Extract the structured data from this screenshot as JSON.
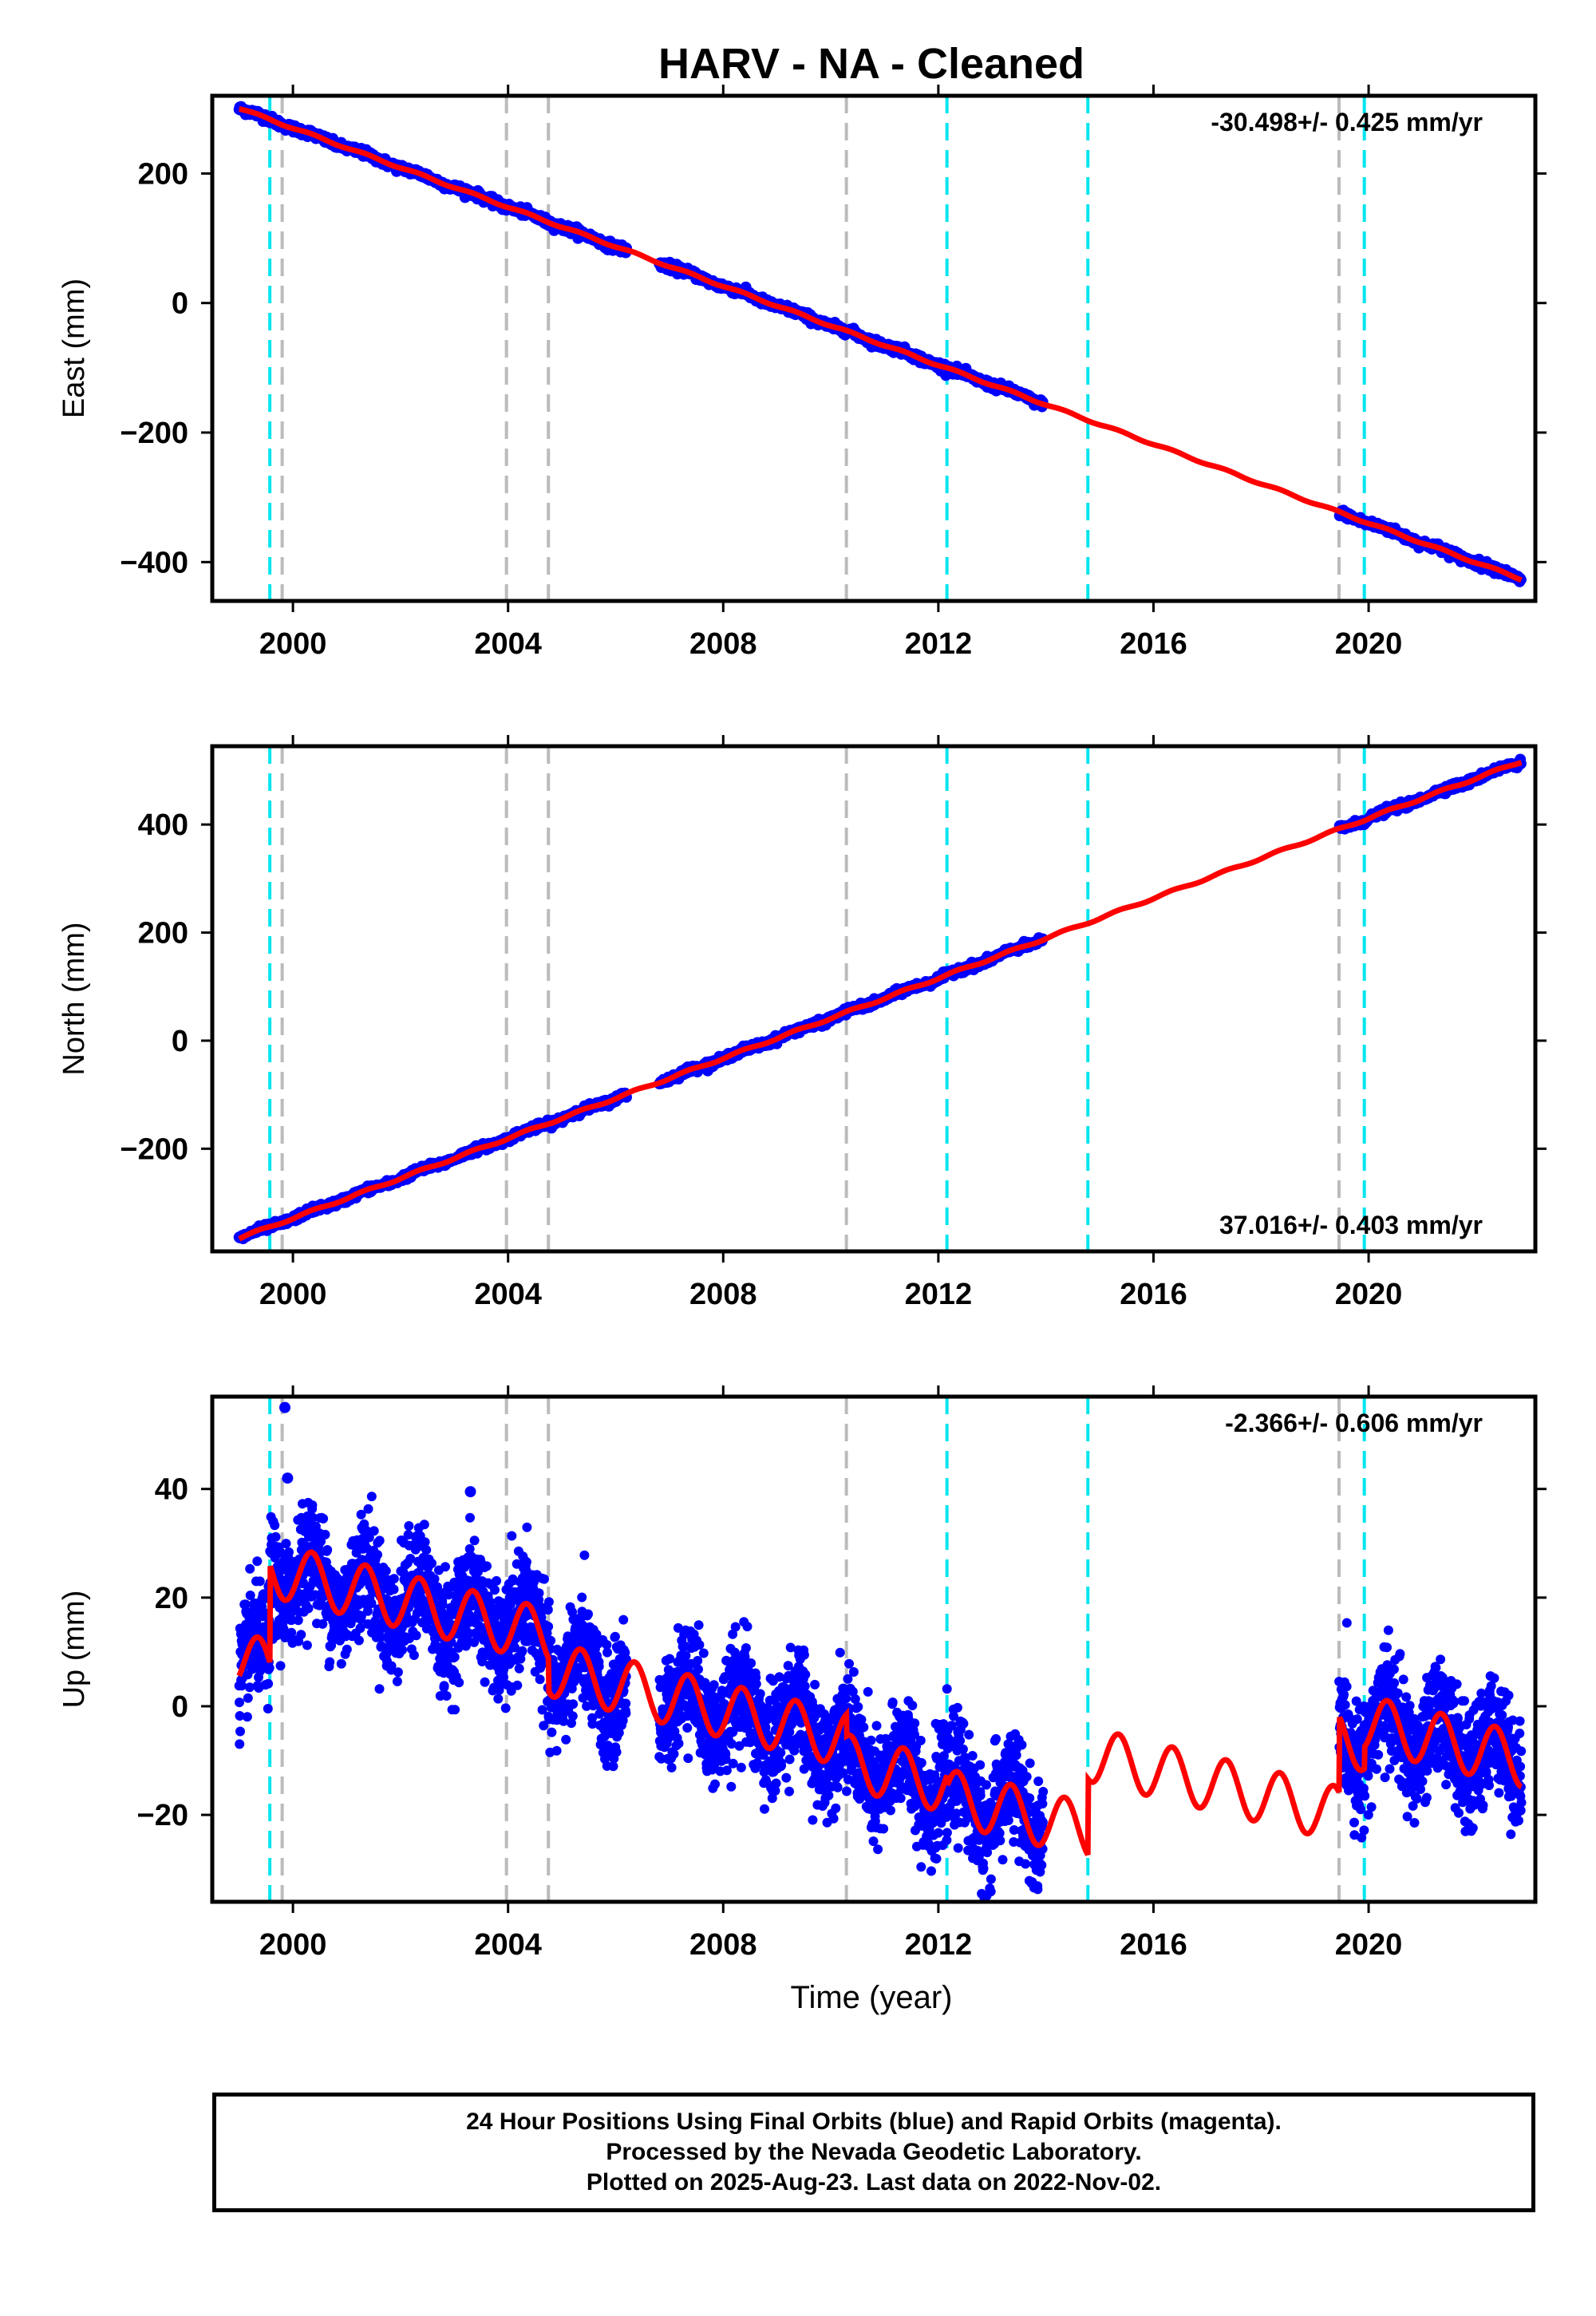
{
  "title": "HARV  - NA - Cleaned",
  "colors": {
    "data": "#0000ff",
    "model": "#ff0000",
    "break_equipment": "#bbbbbb",
    "break_cyan": "#00e5ee",
    "frame": "#000000"
  },
  "break_lines": {
    "gray": [
      1999.8,
      2003.97,
      2004.75,
      2010.29,
      2019.45
    ],
    "cyan": [
      1999.57,
      2012.16,
      2014.78,
      2019.92
    ]
  },
  "xlabel": "Time (year)",
  "chart_data": [
    {
      "type": "scatter",
      "component": "East",
      "ylabel": "East (mm)",
      "rate_label": "-30.498+/- 0.425 mm/yr",
      "xlim": [
        1998.5,
        2023.1
      ],
      "ylim": [
        -460,
        320
      ],
      "xticks": [
        2000,
        2004,
        2008,
        2012,
        2016,
        2020
      ],
      "yticks": [
        -400,
        -200,
        0,
        200
      ],
      "ytick_labels": [
        "−400",
        "−200",
        "0",
        "200"
      ],
      "trend": {
        "ref_year": 2010.5,
        "value_at_ref": -50,
        "rate": -30.498
      },
      "seasonal_amp": 1.5,
      "scatter_noise": 3,
      "offsets": []
    },
    {
      "type": "scatter",
      "component": "North",
      "ylabel": "North (mm)",
      "rate_label": "37.016+/- 0.403 mm/yr",
      "xlim": [
        1998.5,
        2023.1
      ],
      "ylim": [
        -390,
        545
      ],
      "xticks": [
        2000,
        2004,
        2008,
        2012,
        2016,
        2020
      ],
      "yticks": [
        -200,
        0,
        200,
        400
      ],
      "ytick_labels": [
        "−200",
        "0",
        "200",
        "400"
      ],
      "trend": {
        "ref_year": 2010.5,
        "value_at_ref": 60,
        "rate": 37.016
      },
      "seasonal_amp": 2,
      "scatter_noise": 3,
      "offsets": []
    },
    {
      "type": "scatter",
      "component": "Up",
      "ylabel": "Up (mm)",
      "rate_label": "-2.366+/- 0.606 mm/yr",
      "xlim": [
        1998.5,
        2023.1
      ],
      "ylim": [
        -36,
        57
      ],
      "xticks": [
        2000,
        2004,
        2008,
        2012,
        2016,
        2020
      ],
      "yticks": [
        -20,
        0,
        20,
        40
      ],
      "ytick_labels": [
        "−20",
        "0",
        "20",
        "40"
      ],
      "trend": {
        "ref_year": 2010.5,
        "value_at_ref": -8,
        "rate": -2.366
      },
      "seasonal_amp": 5,
      "scatter_noise": 5,
      "offsets": [
        {
          "year": 1999.57,
          "step": 18
        },
        {
          "year": 2004.75,
          "step": -6
        },
        {
          "year": 2010.29,
          "step": -4
        },
        {
          "year": 2012.16,
          "step": -2
        },
        {
          "year": 2014.78,
          "step": 14
        },
        {
          "year": 2019.45,
          "step": 14
        },
        {
          "year": 2019.92,
          "step": 4
        }
      ],
      "outliers": [
        [
          1999.85,
          55
        ],
        [
          1999.9,
          42
        ],
        [
          2003.3,
          39.5
        ]
      ]
    }
  ],
  "data_gaps": [
    [
      2006.2,
      2006.8
    ],
    [
      2013.95,
      2019.45
    ]
  ],
  "data_span": [
    1999.0,
    2022.84
  ],
  "footer": {
    "line1": "24 Hour Positions Using Final Orbits (blue) and Rapid Orbits (magenta).",
    "line2": "Processed by the Nevada Geodetic Laboratory.",
    "line3": "Plotted on 2025-Aug-23. Last data on 2022-Nov-02."
  }
}
